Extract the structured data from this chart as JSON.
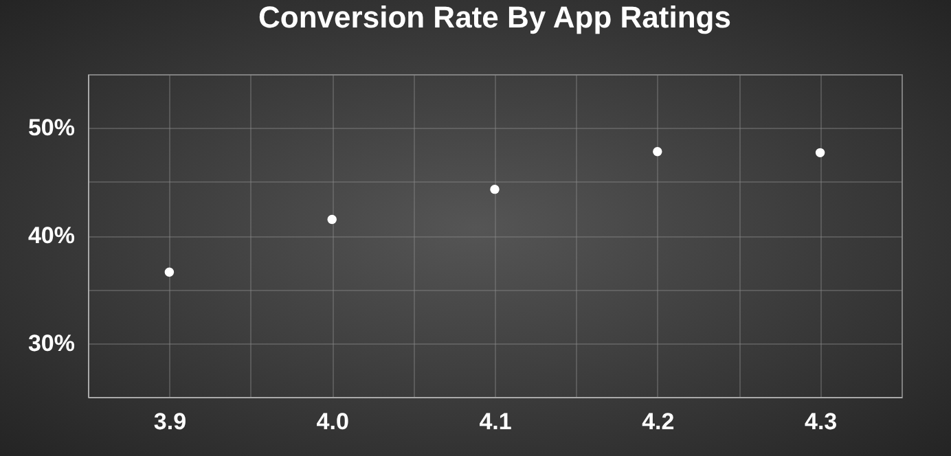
{
  "chart_data": {
    "type": "scatter",
    "title": "Conversion Rate By App Ratings",
    "x": [
      3.9,
      4.0,
      4.1,
      4.2,
      4.3
    ],
    "series": [
      {
        "color": "#ffffff",
        "values": [
          36.6,
          41.5,
          44.3,
          47.8,
          47.7
        ]
      }
    ],
    "xlim": [
      3.85,
      4.35
    ],
    "xticks": [
      {
        "value": 3.85,
        "label": null
      },
      {
        "value": 3.9,
        "label": "3.9"
      },
      {
        "value": 3.95,
        "label": null
      },
      {
        "value": 4.0,
        "label": "4.0"
      },
      {
        "value": 4.05,
        "label": null
      },
      {
        "value": 4.1,
        "label": "4.1"
      },
      {
        "value": 4.15,
        "label": null
      },
      {
        "value": 4.2,
        "label": "4.2"
      },
      {
        "value": 4.25,
        "label": null
      },
      {
        "value": 4.3,
        "label": "4.3"
      },
      {
        "value": 4.35,
        "label": null
      }
    ],
    "ylim": [
      25,
      55
    ],
    "yticks": [
      {
        "value": 25,
        "label": null
      },
      {
        "value": 30,
        "label": "30%"
      },
      {
        "value": 35,
        "label": null
      },
      {
        "value": 40,
        "label": "40%"
      },
      {
        "value": 45,
        "label": null
      },
      {
        "value": 50,
        "label": "50%"
      },
      {
        "value": 55,
        "label": null
      }
    ],
    "grid": true,
    "marker": "circle"
  }
}
